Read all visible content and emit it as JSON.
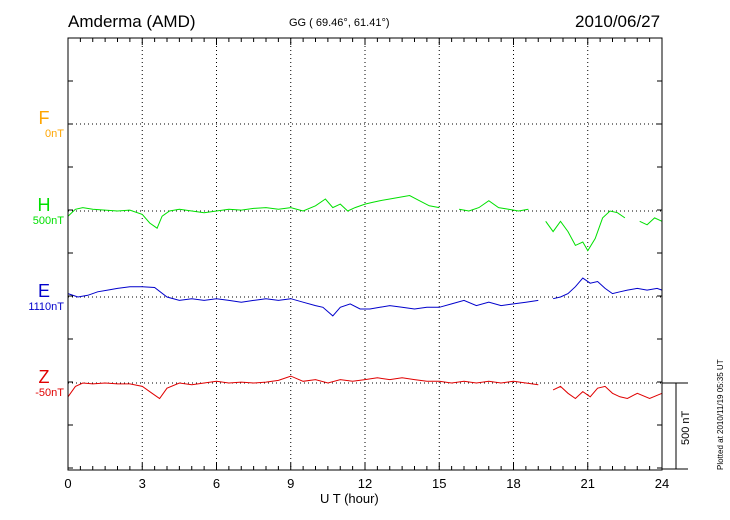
{
  "header": {
    "station": "Amderma (AMD)",
    "coords": "GG ( 69.46°,  61.41°)",
    "date": "2010/06/27"
  },
  "footer": {
    "plotted": "Plotted at 2010/11/19 05:35 UT",
    "scale": "500 nT"
  },
  "chart_data": {
    "type": "line",
    "title": "Amderma (AMD)",
    "xlabel": "U T (hour)",
    "xlim": [
      0,
      24
    ],
    "xticks": [
      "0",
      "3",
      "6",
      "9",
      "12",
      "15",
      "18",
      "21",
      "24"
    ],
    "scale_nT": 500,
    "components": [
      {
        "name": "F",
        "base": "0nT",
        "color": "#ffa500"
      },
      {
        "name": "H",
        "base": "500nT",
        "color": "#00e000"
      },
      {
        "name": "E",
        "base": "1110nT",
        "color": "#0000cc"
      },
      {
        "name": "Z",
        "base": "-50nT",
        "color": "#e00000"
      }
    ],
    "series": [
      {
        "name": "H",
        "x": [
          0,
          0.3,
          0.6,
          1.0,
          1.5,
          2.0,
          2.5,
          3.0,
          3.3,
          3.6,
          3.8,
          4.1,
          4.5,
          5.0,
          5.5,
          6.0,
          6.5,
          7.0,
          7.5,
          8.0,
          8.5,
          9.0,
          9.5,
          10.0,
          10.4,
          10.7,
          11.0,
          11.3,
          11.6,
          12.0,
          12.3,
          12.6,
          13.0,
          13.4,
          13.8,
          14.2,
          14.6,
          15.0,
          15.4,
          15.8,
          16.2,
          16.6,
          17.0,
          17.4,
          17.8,
          18.2,
          18.6,
          19.0,
          19.3,
          19.6,
          19.9,
          20.2,
          20.5,
          20.8,
          21.0,
          21.3,
          21.6,
          21.9,
          22.2,
          22.5,
          22.8,
          23.1,
          23.4,
          23.7,
          24.0
        ],
        "y": [
          -30,
          10,
          20,
          10,
          5,
          0,
          5,
          -20,
          -70,
          -100,
          -30,
          0,
          10,
          0,
          -10,
          0,
          10,
          5,
          15,
          20,
          10,
          20,
          0,
          30,
          70,
          20,
          40,
          0,
          20,
          40,
          50,
          60,
          70,
          80,
          90,
          60,
          30,
          20,
          null,
          10,
          0,
          20,
          60,
          20,
          10,
          0,
          10,
          null,
          -60,
          -120,
          -60,
          -120,
          -200,
          -180,
          -230,
          -160,
          -40,
          0,
          -10,
          -40,
          null,
          -60,
          -80,
          -40,
          -60
        ]
      },
      {
        "name": "E",
        "x": [
          0,
          0.4,
          0.8,
          1.2,
          1.6,
          2.0,
          2.5,
          3.0,
          3.5,
          4.0,
          4.5,
          5.0,
          5.5,
          6.0,
          6.5,
          7.0,
          7.5,
          8.0,
          8.5,
          9.0,
          9.5,
          10.0,
          10.3,
          10.7,
          11.0,
          11.4,
          11.8,
          12.2,
          12.6,
          13.0,
          13.5,
          14.0,
          14.5,
          15.0,
          15.5,
          16.0,
          16.5,
          17.0,
          17.5,
          18.0,
          18.5,
          19.0,
          19.3,
          19.6,
          19.9,
          20.2,
          20.5,
          20.8,
          21.1,
          21.4,
          21.7,
          22.0,
          22.3,
          22.6,
          23.0,
          23.4,
          23.8,
          24.0
        ],
        "y": [
          20,
          0,
          10,
          30,
          40,
          50,
          60,
          60,
          55,
          0,
          -20,
          -10,
          -20,
          -10,
          -20,
          -30,
          -20,
          -10,
          -20,
          -10,
          -30,
          -50,
          -60,
          -110,
          -60,
          -40,
          -70,
          -70,
          -60,
          -50,
          -60,
          -70,
          -60,
          -60,
          -40,
          -20,
          -50,
          -30,
          -50,
          -40,
          -30,
          -20,
          null,
          -10,
          0,
          20,
          60,
          110,
          80,
          90,
          50,
          20,
          30,
          40,
          50,
          40,
          50,
          40
        ]
      },
      {
        "name": "Z",
        "x": [
          0,
          0.3,
          0.6,
          1.0,
          1.5,
          2.0,
          2.5,
          3.0,
          3.4,
          3.7,
          4.0,
          4.5,
          5.0,
          5.5,
          6.0,
          6.5,
          7.0,
          7.5,
          8.0,
          8.5,
          9.0,
          9.5,
          10.0,
          10.5,
          11.0,
          11.5,
          12.0,
          12.5,
          13.0,
          13.5,
          14.0,
          14.5,
          15.0,
          15.5,
          16.0,
          16.5,
          17.0,
          17.5,
          18.0,
          18.5,
          19.0,
          19.3,
          19.6,
          19.9,
          20.2,
          20.5,
          20.8,
          21.1,
          21.4,
          21.7,
          22.0,
          22.3,
          22.6,
          23.0,
          23.5,
          24.0
        ],
        "y": [
          -80,
          -20,
          0,
          -5,
          0,
          -5,
          -5,
          -20,
          -60,
          -90,
          -30,
          0,
          -10,
          0,
          10,
          0,
          5,
          0,
          5,
          15,
          40,
          10,
          20,
          0,
          20,
          10,
          20,
          30,
          20,
          30,
          20,
          10,
          10,
          0,
          10,
          0,
          10,
          0,
          10,
          0,
          -10,
          null,
          -40,
          -20,
          -60,
          -90,
          -50,
          -80,
          -30,
          -20,
          -60,
          -80,
          -90,
          -60,
          -90,
          -60
        ]
      }
    ]
  }
}
